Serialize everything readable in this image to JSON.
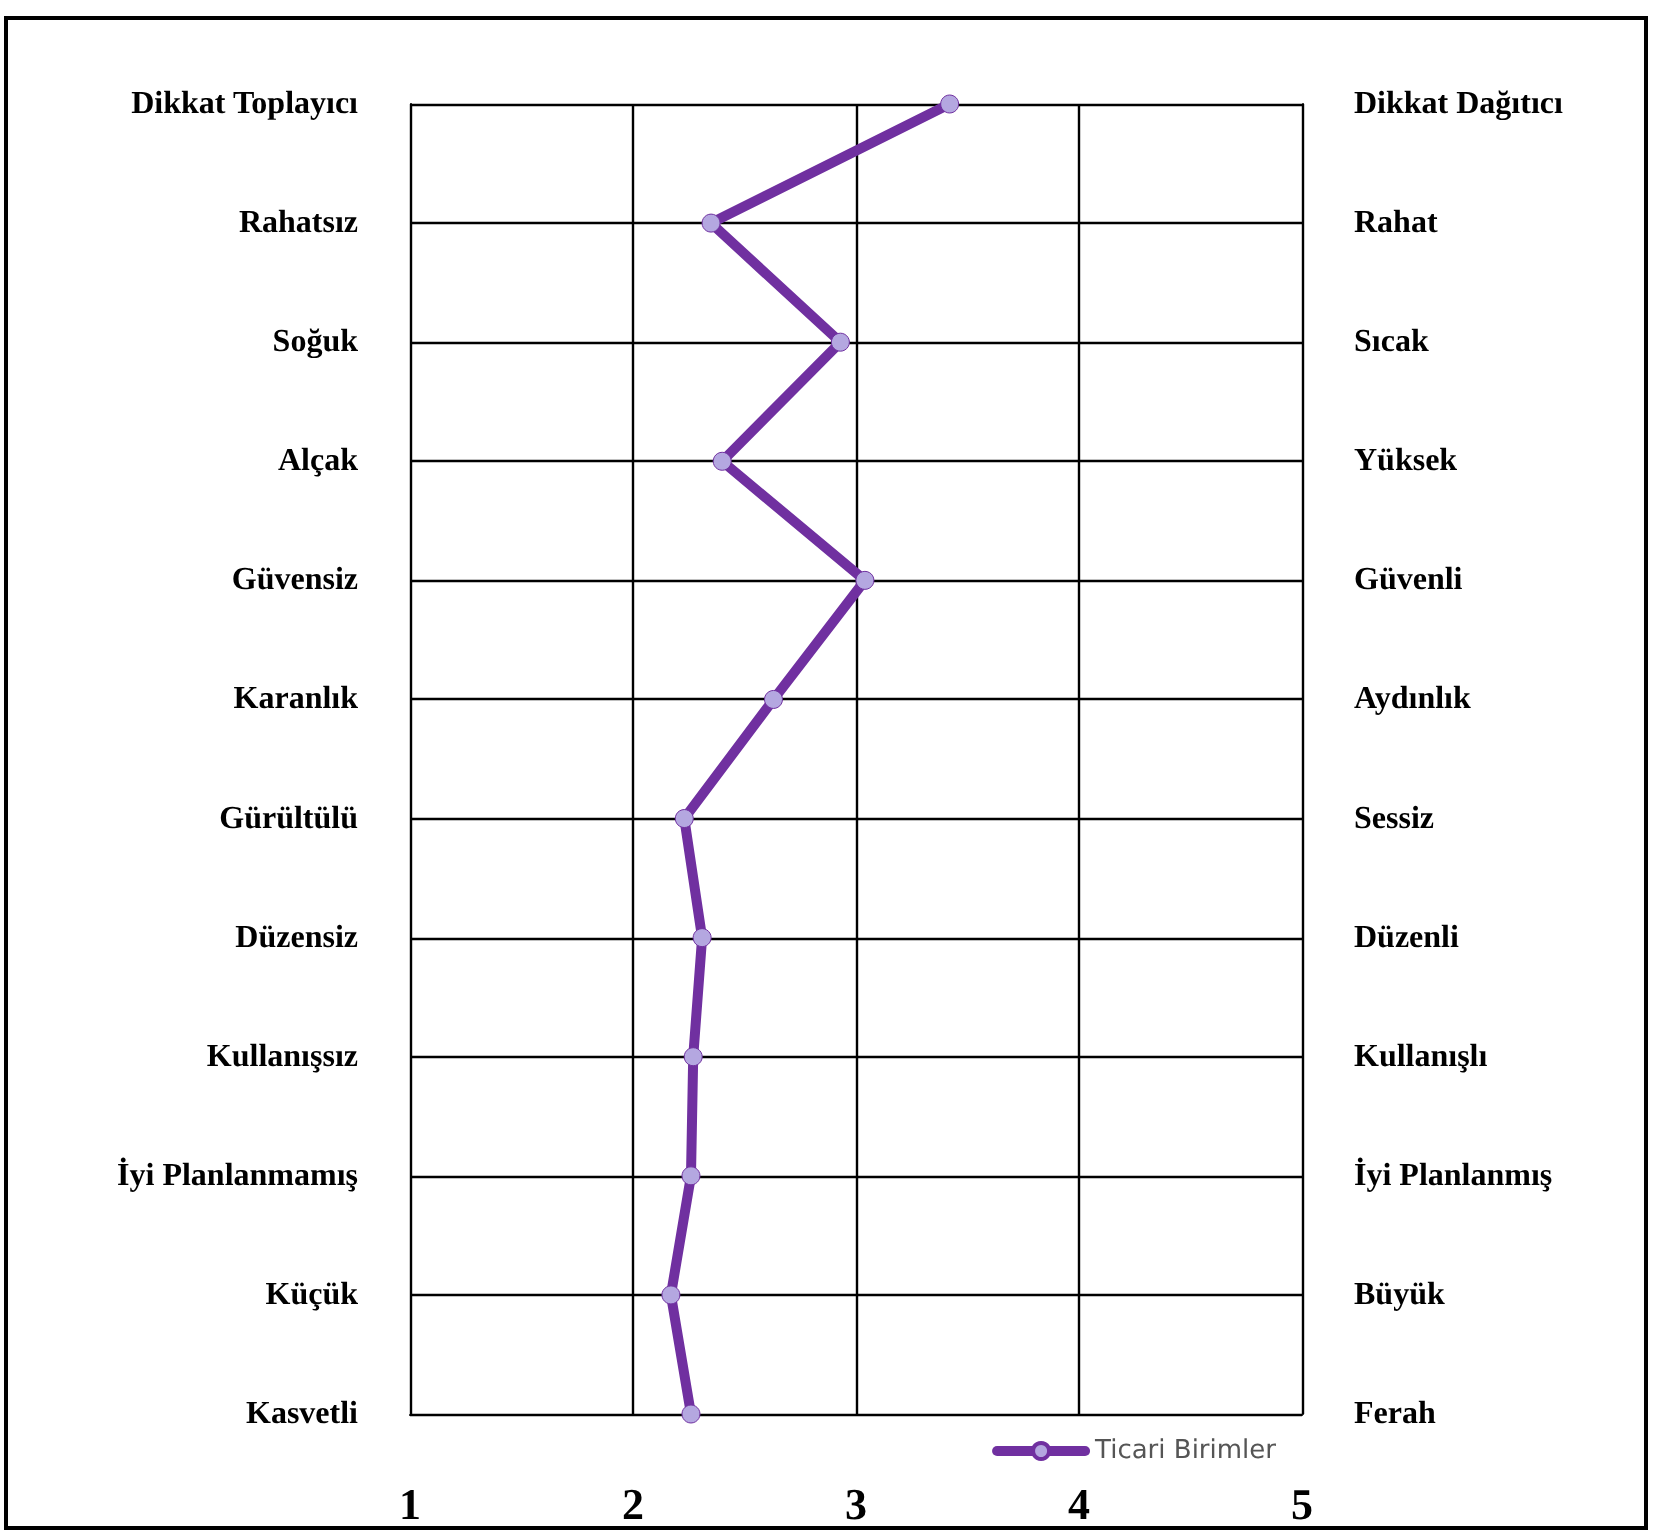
{
  "chart_data": {
    "type": "line",
    "orientation": "horizontal",
    "categories": [
      "Dikkat Toplayıcı",
      "Rahatsız",
      "Soğuk",
      "Alçak",
      "Güvensiz",
      "Karanlık",
      "Gürültülü",
      "Düzensiz",
      "Kullanışsız",
      "İyi Planlanmamış",
      "Küçük",
      "Kasvetli"
    ],
    "y2_categories": [
      "Dikkat Dağıtıcı",
      "Rahat",
      "Sıcak",
      "Yüksek",
      "Güvenli",
      "Aydınlık",
      "Sessiz",
      "Düzenli",
      "Kullanışlı",
      "İyi Planlanmış",
      "Büyük",
      "Ferah"
    ],
    "series": [
      {
        "name": "Ticari Birimler",
        "color": "#7030a0",
        "values": [
          3.42,
          2.35,
          2.93,
          2.4,
          3.04,
          2.63,
          2.23,
          2.31,
          2.27,
          2.26,
          2.17,
          2.26
        ]
      }
    ],
    "xlim": [
      1,
      5
    ],
    "xticks": [
      1,
      2,
      3,
      4,
      5
    ],
    "grid": true,
    "legend": "bottom right",
    "marker": "circle",
    "line_style": "solid"
  }
}
